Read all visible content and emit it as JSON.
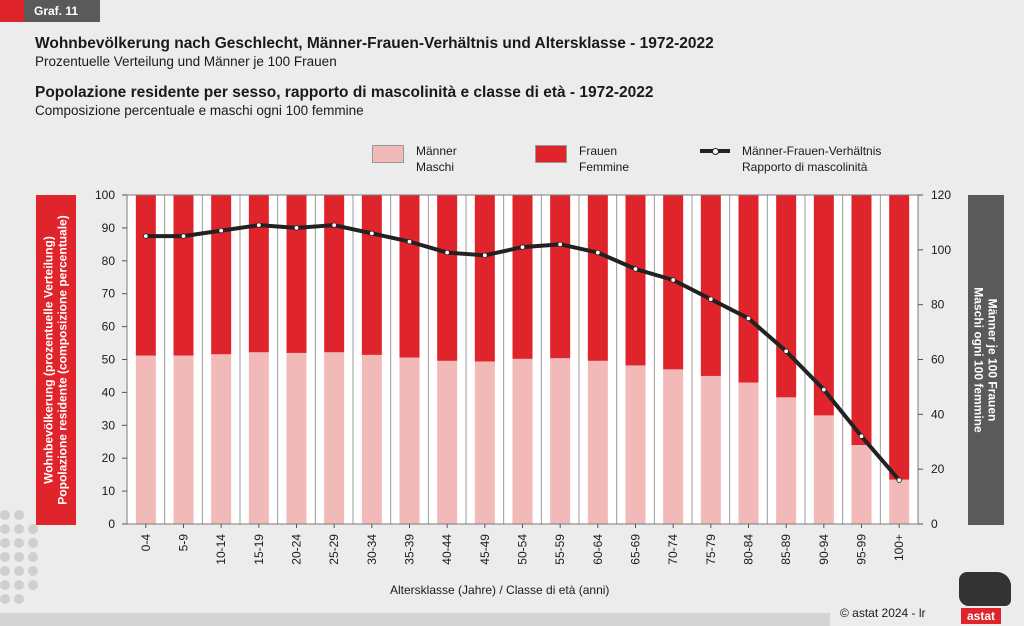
{
  "header": {
    "graf_label": "Graf. 11",
    "title_de": "Wohnbevölkerung nach Geschlecht, Männer-Frauen-Verhältnis und Altersklasse - 1972-2022",
    "subtitle_de": "Prozentuelle Verteilung und Männer je 100 Frauen",
    "title_it": "Popolazione residente per sesso, rapporto di mascolinità e classe di età - 1972-2022",
    "subtitle_it": "Composizione percentuale e maschi ogni 100 femmine"
  },
  "legend": {
    "men_de": "Männer",
    "men_it": "Maschi",
    "women_de": "Frauen",
    "women_it": "Femmine",
    "ratio_de": "Männer-Frauen-Verhältnis",
    "ratio_it": "Rapporto di mascolinità"
  },
  "axes": {
    "left_label_de": "Wohnbevölkerung (prozentuelle Verteilung)",
    "left_label_it": "Popolazione residente (composizione percentuale)",
    "right_label_de": "Männer je 100 Frauen",
    "right_label_it": "Maschi ogni 100 femmine",
    "x_title": "Altersklasse (Jahre) / Classe di età (anni)"
  },
  "footer": {
    "copyright": "© astat 2024 - lr",
    "logo_text": "astat"
  },
  "colors": {
    "men": "#f2b9b9",
    "women": "#e0242b",
    "line": "#222222",
    "accent_gray": "#5a5a5a"
  },
  "chart_data": {
    "type": "bar",
    "stacked": true,
    "categories": [
      "0-4",
      "5-9",
      "10-14",
      "15-19",
      "20-24",
      "25-29",
      "30-34",
      "35-39",
      "40-44",
      "45-49",
      "50-54",
      "55-59",
      "60-64",
      "65-69",
      "70-74",
      "75-79",
      "80-84",
      "85-89",
      "90-94",
      "95-99",
      "100+"
    ],
    "series": [
      {
        "name": "Männer / Maschi",
        "axis": "left",
        "values": [
          51.2,
          51.2,
          51.6,
          52.2,
          52.0,
          52.2,
          51.4,
          50.6,
          49.6,
          49.4,
          50.2,
          50.4,
          49.6,
          48.2,
          47.0,
          45.0,
          43.0,
          38.5,
          33.0,
          24.0,
          13.5
        ]
      },
      {
        "name": "Frauen / Femmine",
        "axis": "left",
        "values": [
          48.8,
          48.8,
          48.4,
          47.8,
          48.0,
          47.8,
          48.6,
          49.4,
          50.4,
          50.6,
          49.8,
          49.6,
          50.4,
          51.8,
          53.0,
          55.0,
          57.0,
          61.5,
          67.0,
          76.0,
          86.5
        ]
      },
      {
        "name": "Männer-Frauen-Verhältnis / Rapporto di mascolinità",
        "axis": "right",
        "type": "line",
        "values": [
          105,
          105,
          107,
          109,
          108,
          109,
          106,
          103,
          99,
          98,
          101,
          102,
          99,
          93,
          89,
          82,
          75,
          63,
          49,
          32,
          16
        ]
      }
    ],
    "y_left": {
      "min": 0,
      "max": 100,
      "ticks": [
        0,
        10,
        20,
        30,
        40,
        50,
        60,
        70,
        80,
        90,
        100
      ]
    },
    "y_right": {
      "min": 0,
      "max": 120,
      "ticks": [
        0,
        20,
        40,
        60,
        80,
        100,
        120
      ]
    },
    "grid": true
  }
}
